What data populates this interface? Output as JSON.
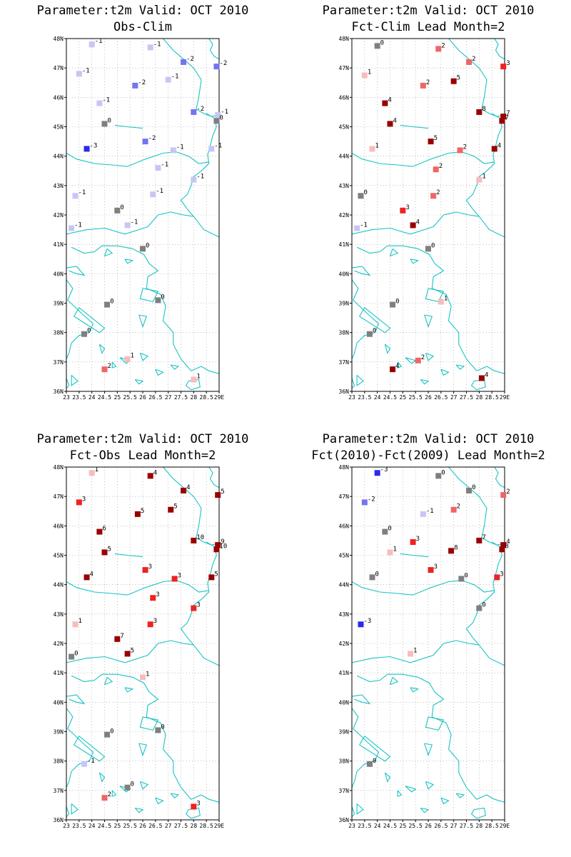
{
  "chart_data": [
    {
      "type": "scatter",
      "title": "Parameter:t2m Valid: OCT 2010",
      "subtitle": "Obs-Clim",
      "x_ticks": [
        "23",
        "23.5",
        "24",
        "24.5",
        "25",
        "25.5",
        "26",
        "26.5",
        "27",
        "27.5",
        "28",
        "28.5",
        "29E"
      ],
      "y_ticks": [
        "36N",
        "37N",
        "38N",
        "39N",
        "40N",
        "41N",
        "42N",
        "43N",
        "44N",
        "45N",
        "46N",
        "47N",
        "48N"
      ],
      "xlim": [
        23,
        29
      ],
      "ylim": [
        36,
        48
      ],
      "grid": true,
      "points": [
        {
          "lon": 24.0,
          "lat": 47.8,
          "value": "-1"
        },
        {
          "lon": 26.3,
          "lat": 47.7,
          "value": "-1"
        },
        {
          "lon": 27.6,
          "lat": 47.2,
          "value": "-2"
        },
        {
          "lon": 28.9,
          "lat": 47.05,
          "value": "-2"
        },
        {
          "lon": 23.5,
          "lat": 46.8,
          "value": "-1"
        },
        {
          "lon": 27.0,
          "lat": 46.6,
          "value": "-1"
        },
        {
          "lon": 25.7,
          "lat": 46.4,
          "value": "-2"
        },
        {
          "lon": 24.3,
          "lat": 45.8,
          "value": "-1"
        },
        {
          "lon": 28.0,
          "lat": 45.5,
          "value": "-2"
        },
        {
          "lon": 28.95,
          "lat": 45.4,
          "value": "-1"
        },
        {
          "lon": 24.5,
          "lat": 45.1,
          "value": "0"
        },
        {
          "lon": 28.9,
          "lat": 45.2,
          "value": "0"
        },
        {
          "lon": 23.8,
          "lat": 44.25,
          "value": "-3"
        },
        {
          "lon": 26.1,
          "lat": 44.5,
          "value": "-2"
        },
        {
          "lon": 27.2,
          "lat": 44.2,
          "value": "-1"
        },
        {
          "lon": 28.7,
          "lat": 44.25,
          "value": "-1"
        },
        {
          "lon": 26.6,
          "lat": 43.6,
          "value": "-1"
        },
        {
          "lon": 28.0,
          "lat": 43.2,
          "value": "-1"
        },
        {
          "lon": 23.35,
          "lat": 42.65,
          "value": "-1"
        },
        {
          "lon": 26.4,
          "lat": 42.7,
          "value": "-1"
        },
        {
          "lon": 25.0,
          "lat": 42.15,
          "value": "0"
        },
        {
          "lon": 25.4,
          "lat": 41.65,
          "value": "-1"
        },
        {
          "lon": 23.2,
          "lat": 41.55,
          "value": "-1"
        },
        {
          "lon": 26.0,
          "lat": 40.85,
          "value": "0"
        },
        {
          "lon": 24.6,
          "lat": 38.95,
          "value": "0"
        },
        {
          "lon": 26.6,
          "lat": 39.1,
          "value": "0"
        },
        {
          "lon": 23.7,
          "lat": 37.95,
          "value": "0"
        },
        {
          "lon": 25.4,
          "lat": 37.1,
          "value": "1"
        },
        {
          "lon": 24.5,
          "lat": 36.75,
          "value": "2"
        },
        {
          "lon": 28.0,
          "lat": 36.4,
          "value": "1"
        }
      ]
    },
    {
      "type": "scatter",
      "title": "Parameter:t2m Valid: OCT 2010",
      "subtitle": "Fct-Clim Lead Month=2",
      "x_ticks": [
        "23",
        "23.5",
        "24",
        "24.5",
        "25",
        "25.5",
        "26",
        "26.5",
        "27",
        "27.5",
        "28",
        "28.5",
        "29E"
      ],
      "y_ticks": [
        "36N",
        "37N",
        "38N",
        "39N",
        "40N",
        "41N",
        "42N",
        "43N",
        "44N",
        "45N",
        "46N",
        "47N",
        "48N"
      ],
      "xlim": [
        23,
        29
      ],
      "ylim": [
        36,
        48
      ],
      "grid": true,
      "points": [
        {
          "lon": 24.0,
          "lat": 47.75,
          "value": "0"
        },
        {
          "lon": 26.4,
          "lat": 47.65,
          "value": "2"
        },
        {
          "lon": 27.6,
          "lat": 47.2,
          "value": "2"
        },
        {
          "lon": 28.95,
          "lat": 47.05,
          "value": "3"
        },
        {
          "lon": 23.5,
          "lat": 46.75,
          "value": "1"
        },
        {
          "lon": 27.0,
          "lat": 46.55,
          "value": "5"
        },
        {
          "lon": 25.8,
          "lat": 46.4,
          "value": "2"
        },
        {
          "lon": 24.3,
          "lat": 45.8,
          "value": "4"
        },
        {
          "lon": 28.0,
          "lat": 45.5,
          "value": "8"
        },
        {
          "lon": 28.95,
          "lat": 45.35,
          "value": "7"
        },
        {
          "lon": 24.5,
          "lat": 45.1,
          "value": "4"
        },
        {
          "lon": 28.9,
          "lat": 45.2,
          "value": "7"
        },
        {
          "lon": 23.8,
          "lat": 44.25,
          "value": "1"
        },
        {
          "lon": 26.1,
          "lat": 44.5,
          "value": "5"
        },
        {
          "lon": 27.25,
          "lat": 44.2,
          "value": "2"
        },
        {
          "lon": 28.6,
          "lat": 44.25,
          "value": "4"
        },
        {
          "lon": 26.3,
          "lat": 43.55,
          "value": "2"
        },
        {
          "lon": 28.0,
          "lat": 43.2,
          "value": "1"
        },
        {
          "lon": 23.35,
          "lat": 42.65,
          "value": "0"
        },
        {
          "lon": 26.2,
          "lat": 42.65,
          "value": "2"
        },
        {
          "lon": 25.0,
          "lat": 42.15,
          "value": "3"
        },
        {
          "lon": 25.4,
          "lat": 41.65,
          "value": "4"
        },
        {
          "lon": 23.2,
          "lat": 41.55,
          "value": "-1"
        },
        {
          "lon": 26.0,
          "lat": 40.85,
          "value": "0"
        },
        {
          "lon": 24.6,
          "lat": 38.95,
          "value": "0"
        },
        {
          "lon": 26.5,
          "lat": 39.05,
          "value": "1"
        },
        {
          "lon": 23.7,
          "lat": 37.95,
          "value": "0"
        },
        {
          "lon": 25.6,
          "lat": 37.05,
          "value": "2"
        },
        {
          "lon": 24.6,
          "lat": 36.75,
          "value": "4"
        },
        {
          "lon": 28.1,
          "lat": 36.45,
          "value": "4"
        }
      ]
    },
    {
      "type": "scatter",
      "title": "Parameter:t2m Valid: OCT 2010",
      "subtitle": "Fct-Obs Lead Month=2",
      "x_ticks": [
        "23",
        "23.5",
        "24",
        "24.5",
        "25",
        "25.5",
        "26",
        "26.5",
        "27",
        "27.5",
        "28",
        "28.5",
        "29E"
      ],
      "y_ticks": [
        "36N",
        "37N",
        "38N",
        "39N",
        "40N",
        "41N",
        "42N",
        "43N",
        "44N",
        "45N",
        "46N",
        "47N",
        "48N"
      ],
      "xlim": [
        23,
        29
      ],
      "ylim": [
        36,
        48
      ],
      "grid": true,
      "points": [
        {
          "lon": 24.0,
          "lat": 47.8,
          "value": "1"
        },
        {
          "lon": 26.3,
          "lat": 47.7,
          "value": "4"
        },
        {
          "lon": 27.6,
          "lat": 47.2,
          "value": "4"
        },
        {
          "lon": 28.95,
          "lat": 47.05,
          "value": "5"
        },
        {
          "lon": 23.5,
          "lat": 46.8,
          "value": "3"
        },
        {
          "lon": 27.1,
          "lat": 46.55,
          "value": "5"
        },
        {
          "lon": 25.8,
          "lat": 46.4,
          "value": "5"
        },
        {
          "lon": 24.3,
          "lat": 45.8,
          "value": "6"
        },
        {
          "lon": 28.0,
          "lat": 45.5,
          "value": "10"
        },
        {
          "lon": 28.95,
          "lat": 45.35,
          "value": "9"
        },
        {
          "lon": 24.5,
          "lat": 45.1,
          "value": "5"
        },
        {
          "lon": 28.9,
          "lat": 45.2,
          "value": "10"
        },
        {
          "lon": 23.8,
          "lat": 44.25,
          "value": "4"
        },
        {
          "lon": 26.1,
          "lat": 44.5,
          "value": "3"
        },
        {
          "lon": 27.25,
          "lat": 44.2,
          "value": "3"
        },
        {
          "lon": 28.7,
          "lat": 44.25,
          "value": "5"
        },
        {
          "lon": 26.4,
          "lat": 43.55,
          "value": "3"
        },
        {
          "lon": 28.0,
          "lat": 43.2,
          "value": "3"
        },
        {
          "lon": 23.35,
          "lat": 42.65,
          "value": "1"
        },
        {
          "lon": 26.3,
          "lat": 42.65,
          "value": "3"
        },
        {
          "lon": 25.0,
          "lat": 42.15,
          "value": "7"
        },
        {
          "lon": 25.4,
          "lat": 41.65,
          "value": "5"
        },
        {
          "lon": 23.2,
          "lat": 41.55,
          "value": "0"
        },
        {
          "lon": 26.0,
          "lat": 40.85,
          "value": "1"
        },
        {
          "lon": 24.6,
          "lat": 38.9,
          "value": "0"
        },
        {
          "lon": 26.6,
          "lat": 39.05,
          "value": "0"
        },
        {
          "lon": 23.7,
          "lat": 37.9,
          "value": "-1"
        },
        {
          "lon": 25.4,
          "lat": 37.1,
          "value": "0"
        },
        {
          "lon": 24.5,
          "lat": 36.75,
          "value": "2"
        },
        {
          "lon": 28.0,
          "lat": 36.45,
          "value": "3"
        }
      ]
    },
    {
      "type": "scatter",
      "title": "Parameter:t2m Valid: OCT 2010",
      "subtitle": "Fct(2010)-Fct(2009) Lead Month=2",
      "x_ticks": [
        "23",
        "23.5",
        "24",
        "24.5",
        "25",
        "25.5",
        "26",
        "26.5",
        "27",
        "27.5",
        "28",
        "28.5",
        "29E"
      ],
      "y_ticks": [
        "36N",
        "37N",
        "38N",
        "39N",
        "40N",
        "41N",
        "42N",
        "43N",
        "44N",
        "45N",
        "46N",
        "47N",
        "48N"
      ],
      "xlim": [
        23,
        29
      ],
      "ylim": [
        36,
        48
      ],
      "grid": true,
      "points": [
        {
          "lon": 24.0,
          "lat": 47.8,
          "value": "-3"
        },
        {
          "lon": 26.4,
          "lat": 47.7,
          "value": "0"
        },
        {
          "lon": 27.6,
          "lat": 47.2,
          "value": "0"
        },
        {
          "lon": 28.95,
          "lat": 47.05,
          "value": "2"
        },
        {
          "lon": 23.5,
          "lat": 46.8,
          "value": "-2"
        },
        {
          "lon": 27.0,
          "lat": 46.55,
          "value": "2"
        },
        {
          "lon": 25.8,
          "lat": 46.4,
          "value": "-1"
        },
        {
          "lon": 24.3,
          "lat": 45.8,
          "value": "0"
        },
        {
          "lon": 28.0,
          "lat": 45.5,
          "value": "7"
        },
        {
          "lon": 28.95,
          "lat": 45.35,
          "value": "4"
        },
        {
          "lon": 24.5,
          "lat": 45.1,
          "value": "1"
        },
        {
          "lon": 28.9,
          "lat": 45.2,
          "value": "8"
        },
        {
          "lon": 25.4,
          "lat": 45.45,
          "value": "3"
        },
        {
          "lon": 26.9,
          "lat": 45.15,
          "value": "8"
        },
        {
          "lon": 23.8,
          "lat": 44.25,
          "value": "0"
        },
        {
          "lon": 26.1,
          "lat": 44.5,
          "value": "3"
        },
        {
          "lon": 27.3,
          "lat": 44.2,
          "value": "0"
        },
        {
          "lon": 28.7,
          "lat": 44.25,
          "value": "3"
        },
        {
          "lon": 28.0,
          "lat": 43.2,
          "value": "0"
        },
        {
          "lon": 23.35,
          "lat": 42.65,
          "value": "-3"
        },
        {
          "lon": 25.3,
          "lat": 41.65,
          "value": "1"
        },
        {
          "lon": 23.7,
          "lat": 37.9,
          "value": "0"
        }
      ]
    }
  ]
}
